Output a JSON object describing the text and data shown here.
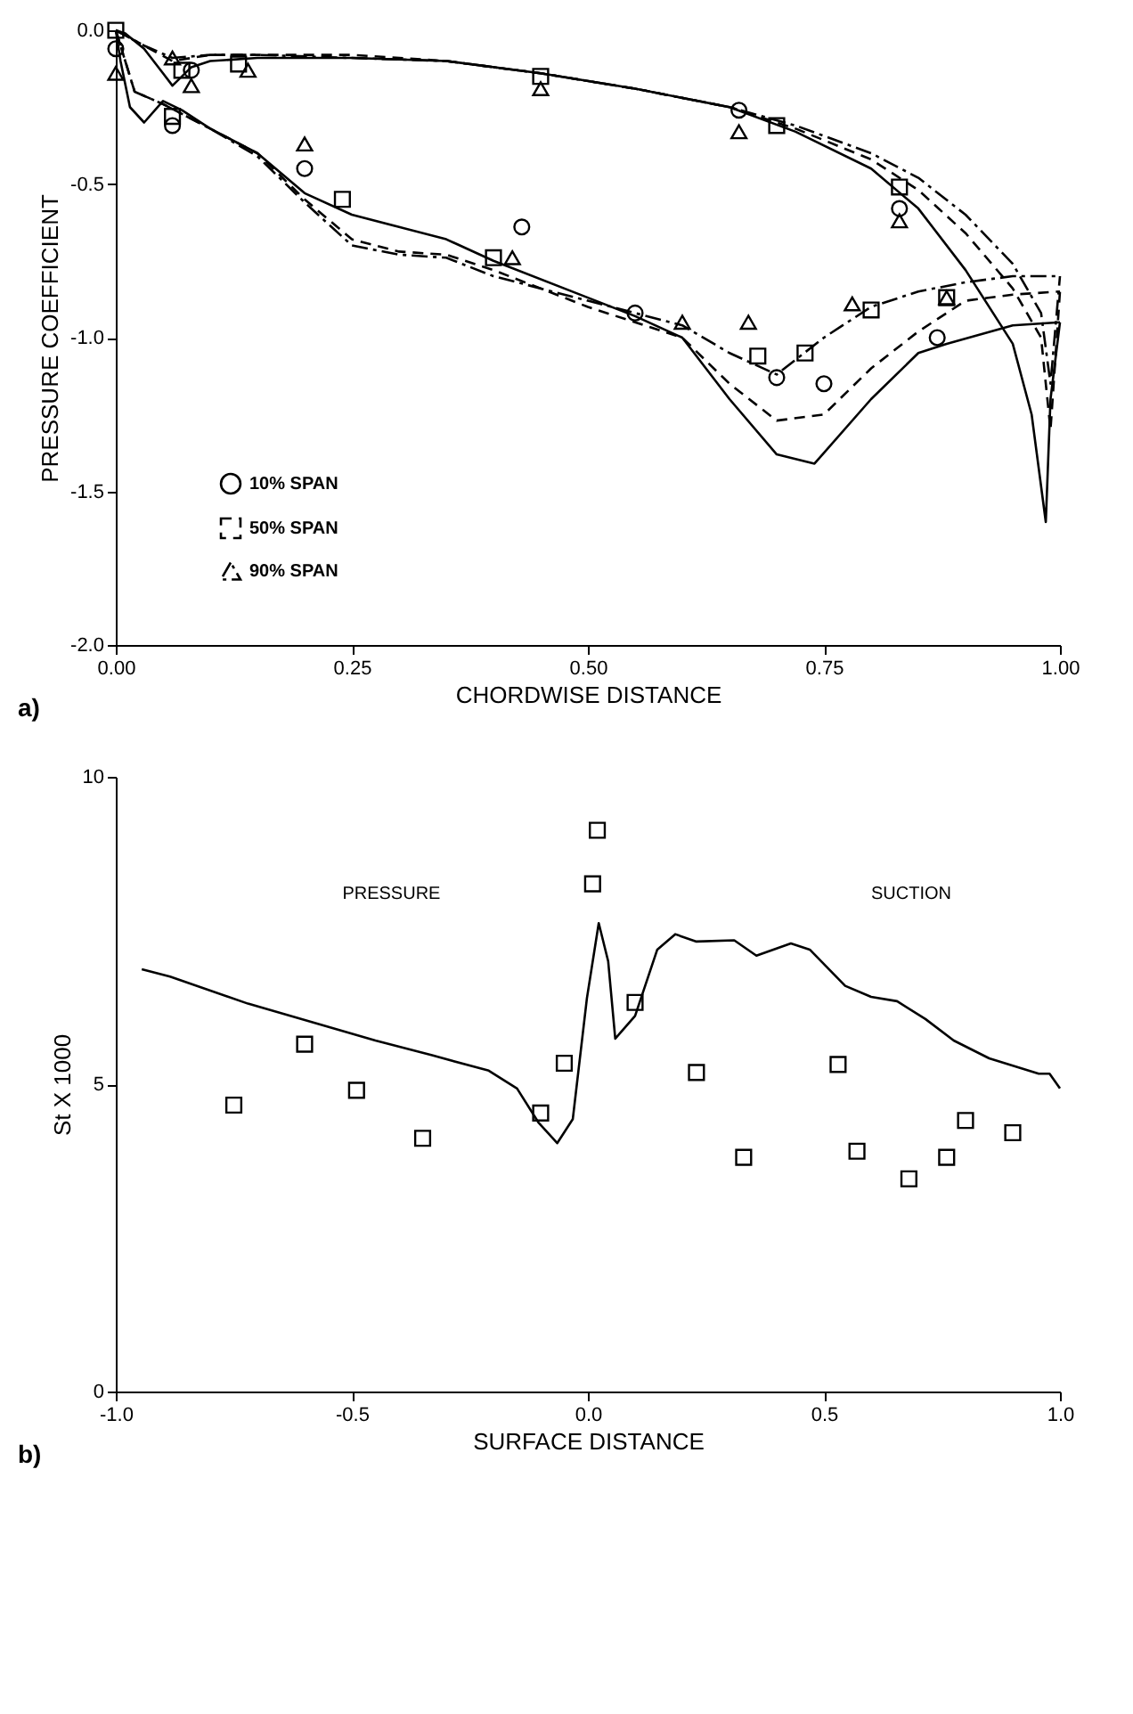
{
  "chart_data": [
    {
      "type": "line",
      "xlabel": "CHORDWISE DISTANCE",
      "ylabel": "PRESSURE COEFFICIENT",
      "xlim": [
        0,
        1
      ],
      "ylim": [
        -2,
        0
      ],
      "xticks": [
        {
          "value": 0,
          "label": "0.00"
        },
        {
          "value": 0.25,
          "label": "0.25"
        },
        {
          "value": 0.5,
          "label": "0.50"
        },
        {
          "value": 0.75,
          "label": "0.75"
        },
        {
          "value": 1,
          "label": "1.00"
        }
      ],
      "yticks": [
        {
          "value": 0,
          "label": "0.0"
        },
        {
          "value": -0.5,
          "label": "-0.5"
        },
        {
          "value": -1,
          "label": "-1.0"
        },
        {
          "value": -1.5,
          "label": "-1.5"
        },
        {
          "value": -2,
          "label": "-2.0"
        }
      ],
      "grid": false,
      "legend": "bottom left",
      "annotations": [
        "a)"
      ],
      "series": [
        {
          "type": "scatter",
          "marker": "circle",
          "color": "#000000",
          "x": [
            0.0,
            0.08,
            0.06,
            0.2,
            0.43,
            0.66,
            0.83,
            0.55,
            0.7,
            0.75,
            0.87
          ],
          "values": [
            -0.06,
            -0.13,
            -0.31,
            -0.45,
            -0.64,
            -0.26,
            -0.58,
            -0.92,
            -1.13,
            -1.15,
            -1.0
          ]
        },
        {
          "type": "scatter",
          "marker": "square",
          "color": "#000000",
          "x": [
            0.0,
            0.07,
            0.06,
            0.13,
            0.24,
            0.4,
            0.45,
            0.7,
            0.83,
            0.68,
            0.73,
            0.8,
            0.88
          ],
          "values": [
            0.0,
            -0.13,
            -0.28,
            -0.11,
            -0.55,
            -0.74,
            -0.15,
            -0.31,
            -0.51,
            -1.06,
            -1.05,
            -0.91,
            -0.87
          ]
        },
        {
          "type": "scatter",
          "marker": "triangle",
          "color": "#000000",
          "x": [
            0.0,
            0.06,
            0.08,
            0.14,
            0.2,
            0.42,
            0.45,
            0.66,
            0.83,
            0.6,
            0.67,
            0.78,
            0.88
          ],
          "values": [
            -0.14,
            -0.09,
            -0.18,
            -0.13,
            -0.37,
            -0.74,
            -0.19,
            -0.33,
            -0.62,
            -0.95,
            -0.95,
            -0.89,
            -0.87
          ]
        },
        {
          "name": "10% SPAN",
          "line_style": "solid",
          "color": "#000000",
          "x": [
            0.0,
            0.01,
            0.03,
            0.05,
            0.06,
            0.08,
            0.1,
            0.15,
            0.25,
            0.35,
            0.45,
            0.55,
            0.65,
            0.72,
            0.8,
            0.85,
            0.9,
            0.95,
            0.97,
            0.985,
            0.99,
            1.0
          ],
          "values": [
            0.0,
            -0.01,
            -0.06,
            -0.14,
            -0.18,
            -0.12,
            -0.1,
            -0.09,
            -0.09,
            -0.1,
            -0.14,
            -0.19,
            -0.25,
            -0.33,
            -0.45,
            -0.58,
            -0.78,
            -1.02,
            -1.25,
            -1.6,
            -1.2,
            -0.95
          ]
        },
        {
          "name": "50% SPAN",
          "line_style": "dashed",
          "color": "#000000",
          "x": [
            0.0,
            0.03,
            0.06,
            0.1,
            0.15,
            0.25,
            0.35,
            0.45,
            0.55,
            0.65,
            0.72,
            0.8,
            0.85,
            0.9,
            0.95,
            0.98,
            0.99,
            1.0
          ],
          "values": [
            0.0,
            -0.05,
            -0.1,
            -0.08,
            -0.08,
            -0.08,
            -0.1,
            -0.14,
            -0.19,
            -0.25,
            -0.32,
            -0.42,
            -0.52,
            -0.66,
            -0.84,
            -1.0,
            -1.3,
            -0.85
          ]
        },
        {
          "name": "90% SPAN",
          "line_style": "dashdot",
          "color": "#000000",
          "x": [
            0.0,
            0.03,
            0.06,
            0.1,
            0.15,
            0.25,
            0.35,
            0.45,
            0.55,
            0.65,
            0.72,
            0.8,
            0.85,
            0.9,
            0.95,
            0.98,
            0.99,
            1.0
          ],
          "values": [
            0.0,
            -0.05,
            -0.09,
            -0.08,
            -0.08,
            -0.09,
            -0.1,
            -0.14,
            -0.19,
            -0.25,
            -0.31,
            -0.4,
            -0.48,
            -0.6,
            -0.76,
            -0.92,
            -1.15,
            -0.8
          ]
        },
        {
          "line_style": "solid",
          "color": "#000000",
          "x": [
            0.0,
            0.005,
            0.015,
            0.03,
            0.05,
            0.07,
            0.1,
            0.15,
            0.2,
            0.25,
            0.3,
            0.35,
            0.4,
            0.5,
            0.55,
            0.6,
            0.65,
            0.7,
            0.74,
            0.8,
            0.85,
            0.88,
            0.95,
            1.0
          ],
          "values": [
            0.0,
            -0.1,
            -0.25,
            -0.3,
            -0.23,
            -0.26,
            -0.32,
            -0.4,
            -0.53,
            -0.6,
            -0.64,
            -0.68,
            -0.75,
            -0.87,
            -0.93,
            -1.0,
            -1.2,
            -1.38,
            -1.41,
            -1.2,
            -1.05,
            -1.02,
            -0.96,
            -0.95
          ]
        },
        {
          "line_style": "dashed",
          "color": "#000000",
          "x": [
            0.0,
            0.02,
            0.05,
            0.1,
            0.15,
            0.2,
            0.25,
            0.3,
            0.35,
            0.4,
            0.5,
            0.55,
            0.6,
            0.65,
            0.7,
            0.75,
            0.8,
            0.85,
            0.9,
            0.95,
            1.0
          ],
          "values": [
            0.0,
            -0.2,
            -0.24,
            -0.32,
            -0.4,
            -0.55,
            -0.68,
            -0.72,
            -0.73,
            -0.78,
            -0.9,
            -0.95,
            -1.0,
            -1.15,
            -1.27,
            -1.25,
            -1.1,
            -0.98,
            -0.88,
            -0.86,
            -0.85
          ]
        },
        {
          "line_style": "dashdot",
          "color": "#000000",
          "x": [
            0.0,
            0.02,
            0.05,
            0.1,
            0.15,
            0.2,
            0.25,
            0.3,
            0.35,
            0.4,
            0.5,
            0.55,
            0.6,
            0.65,
            0.7,
            0.75,
            0.8,
            0.85,
            0.9,
            0.95,
            1.0
          ],
          "values": [
            0.0,
            -0.2,
            -0.24,
            -0.32,
            -0.41,
            -0.56,
            -0.7,
            -0.73,
            -0.74,
            -0.8,
            -0.88,
            -0.92,
            -0.96,
            -1.05,
            -1.12,
            -1.0,
            -0.9,
            -0.85,
            -0.82,
            -0.8,
            -0.8
          ]
        }
      ]
    },
    {
      "type": "line",
      "xlabel": "SURFACE DISTANCE",
      "ylabel": "St X 1000",
      "xlim": [
        -1,
        1
      ],
      "ylim": [
        0,
        10
      ],
      "xticks": [
        {
          "value": -1,
          "label": "-1.0"
        },
        {
          "value": -0.5,
          "label": "-0.5"
        },
        {
          "value": 0,
          "label": "0.0"
        },
        {
          "value": 0.5,
          "label": "0.5"
        },
        {
          "value": 1,
          "label": "1.0"
        }
      ],
      "yticks": [
        0,
        5,
        10
      ],
      "grid": false,
      "annotations": [
        "PRESSURE",
        "SUCTION",
        "b)"
      ],
      "series": [
        {
          "line_style": "solid",
          "color": "#000000",
          "x": [
            -0.945,
            -0.885,
            -0.72,
            -0.585,
            -0.45,
            -0.33,
            -0.21,
            -0.15,
            -0.105,
            -0.065,
            -0.032,
            -0.002,
            0.023,
            0.043,
            0.058,
            0.1,
            0.147,
            0.185,
            0.23,
            0.31,
            0.357,
            0.43,
            0.47,
            0.545,
            0.6,
            0.655,
            0.715,
            0.775,
            0.85,
            0.955,
            0.978,
            1.0
          ],
          "values": [
            6.87,
            6.75,
            6.31,
            6.01,
            5.71,
            5.47,
            5.22,
            4.93,
            4.38,
            4.04,
            4.43,
            6.4,
            7.62,
            7.0,
            5.74,
            6.11,
            7.19,
            7.44,
            7.32,
            7.34,
            7.09,
            7.29,
            7.19,
            6.6,
            6.42,
            6.35,
            6.06,
            5.71,
            5.42,
            5.17,
            5.17,
            4.93
          ]
        },
        {
          "type": "scatter",
          "marker": "square",
          "color": "#000000",
          "x": [
            -0.75,
            -0.6,
            -0.49,
            -0.35,
            -0.1,
            -0.05,
            0.01,
            0.02,
            0.1,
            0.23,
            0.33,
            0.53,
            0.57,
            0.68,
            0.76,
            0.8,
            0.9
          ],
          "values": [
            4.66,
            5.65,
            4.9,
            4.12,
            4.53,
            5.34,
            8.26,
            9.13,
            6.33,
            5.19,
            3.81,
            5.32,
            3.91,
            3.46,
            3.81,
            4.41,
            4.21
          ]
        }
      ]
    }
  ]
}
